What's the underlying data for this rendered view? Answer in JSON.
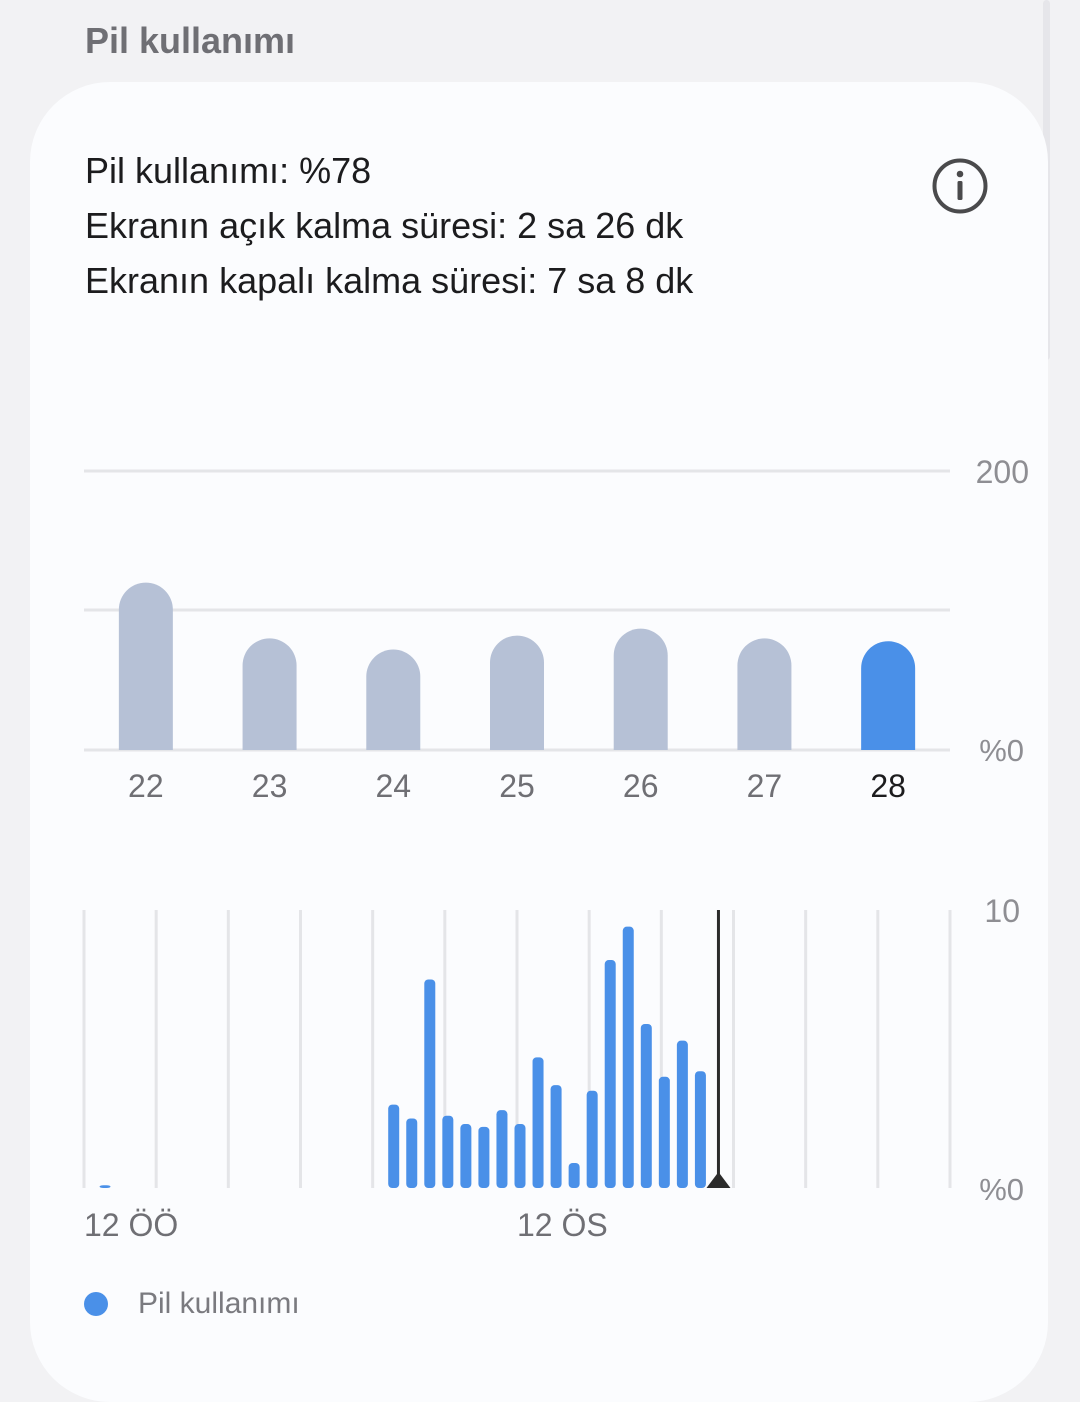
{
  "header": {
    "title": "Pil kullanımı"
  },
  "summary": {
    "battery_usage": "Pil kullanımı: %78",
    "screen_on": "Ekranın açık kalma süresi: 2 sa 26 dk",
    "screen_off": "Ekranın kapalı kalma süresi: 7 sa 8 dk"
  },
  "icons": {
    "info": "info-icon"
  },
  "colors": {
    "accent": "#4a90e8",
    "inactive_bar": "#b6c1d6",
    "grid": "#e4e5e8",
    "current_time_marker": "#2b2b2b"
  },
  "chart_data": [
    {
      "type": "bar",
      "categories": [
        "22",
        "23",
        "24",
        "25",
        "26",
        "27",
        "28"
      ],
      "values": [
        120,
        80,
        72,
        82,
        87,
        80,
        78
      ],
      "selected_category": "28",
      "y_tick_labels": [
        "200",
        "%0"
      ],
      "ylim": [
        0,
        200
      ],
      "grid": true
    },
    {
      "type": "bar",
      "x_tick_labels": [
        "12 ÖÖ",
        "12 ÖS"
      ],
      "x_range_hours": [
        0,
        24
      ],
      "bars": [
        {
          "hour": 0.5,
          "value": 0.1
        },
        {
          "hour": 8.5,
          "value": 3.0
        },
        {
          "hour": 9.0,
          "value": 2.5
        },
        {
          "hour": 9.5,
          "value": 7.5
        },
        {
          "hour": 10.0,
          "value": 2.6
        },
        {
          "hour": 10.5,
          "value": 2.3
        },
        {
          "hour": 11.0,
          "value": 2.2
        },
        {
          "hour": 11.5,
          "value": 2.8
        },
        {
          "hour": 12.0,
          "value": 2.3
        },
        {
          "hour": 12.5,
          "value": 4.7
        },
        {
          "hour": 13.0,
          "value": 3.7
        },
        {
          "hour": 13.5,
          "value": 0.9
        },
        {
          "hour": 14.0,
          "value": 3.5
        },
        {
          "hour": 14.5,
          "value": 8.2
        },
        {
          "hour": 15.0,
          "value": 9.4
        },
        {
          "hour": 15.5,
          "value": 5.9
        },
        {
          "hour": 16.0,
          "value": 4.0
        },
        {
          "hour": 16.5,
          "value": 5.3
        },
        {
          "hour": 17.0,
          "value": 4.2
        }
      ],
      "current_time_hour": 17.5,
      "y_tick_labels": [
        "10",
        "%0"
      ],
      "ylim": [
        0,
        10
      ],
      "grid": true
    }
  ],
  "legend": {
    "label": "Pil kullanımı"
  }
}
